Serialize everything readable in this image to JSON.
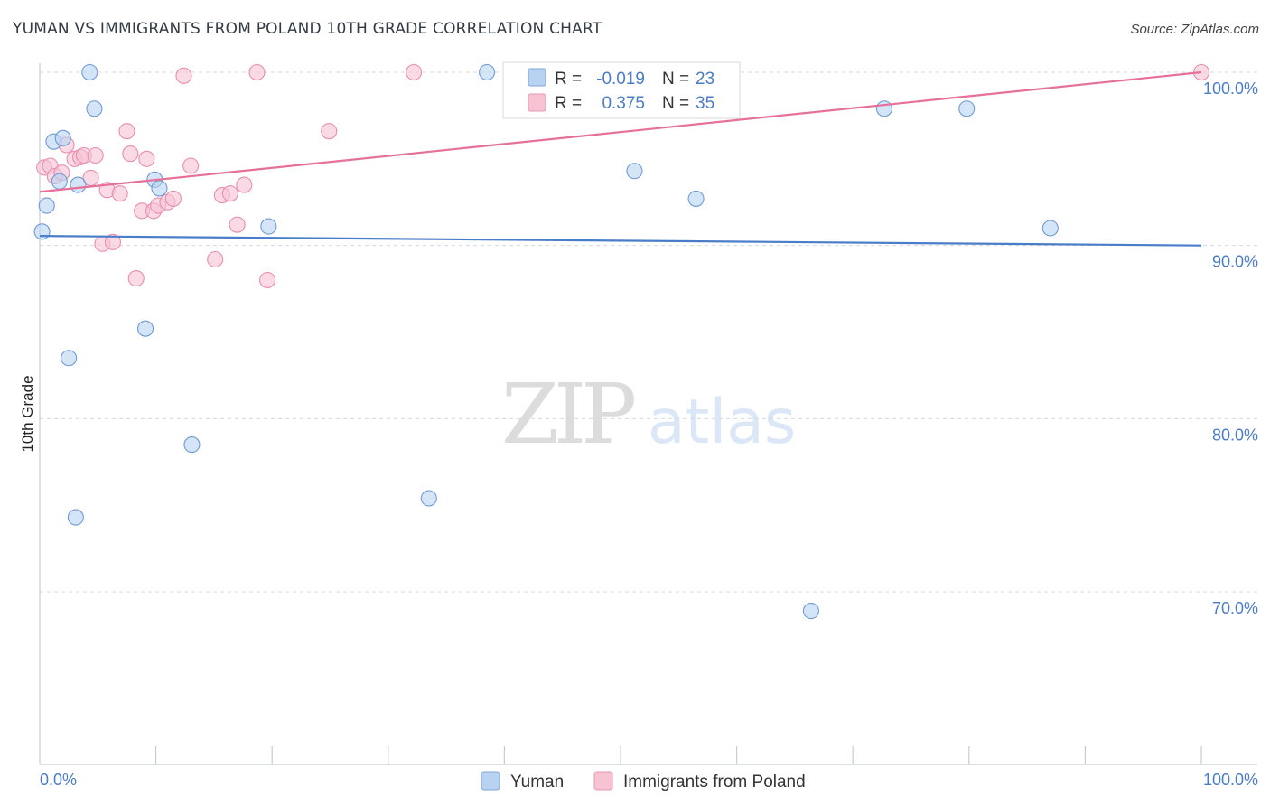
{
  "title": "YUMAN VS IMMIGRANTS FROM POLAND 10TH GRADE CORRELATION CHART",
  "source": "Source: ZipAtlas.com",
  "watermark": {
    "zip": "ZIP",
    "atlas": "atlas"
  },
  "colors": {
    "blue": "#4a7dc9",
    "blue_fill": "#b8d3f2",
    "pink": "#e6709a",
    "pink_fill": "#f7c3d3",
    "grid": "#d5d9df"
  },
  "legend": {
    "rows": [
      {
        "r_label": "R =",
        "r_value": "-0.019",
        "n_label": "N =",
        "n_value": "23"
      },
      {
        "r_label": "R =",
        "r_value": "0.375",
        "n_label": "N =",
        "n_value": "35"
      }
    ]
  },
  "chart_data": {
    "type": "scatter",
    "title": "YUMAN VS IMMIGRANTS FROM POLAND 10TH GRADE CORRELATION CHART",
    "xlabel": "",
    "ylabel": "10th Grade",
    "xlim": [
      0,
      100
    ],
    "ylim": [
      60.5,
      102
    ],
    "x_tick_labels": [
      "0.0%",
      "100.0%"
    ],
    "y_ticks": [
      70,
      80,
      90,
      100
    ],
    "y_tick_labels": [
      "70.0%",
      "80.0%",
      "90.0%",
      "100.0%"
    ],
    "grid": true,
    "series": [
      {
        "name": "Yuman",
        "color": "#4a7dc9",
        "trend": {
          "x": [
            0,
            100
          ],
          "y": [
            90.55,
            90.0
          ]
        },
        "points": [
          {
            "x": 0.2,
            "y": 90.8
          },
          {
            "x": 0.6,
            "y": 92.3
          },
          {
            "x": 1.2,
            "y": 96.0
          },
          {
            "x": 1.7,
            "y": 93.7
          },
          {
            "x": 2.0,
            "y": 96.2
          },
          {
            "x": 2.5,
            "y": 83.5
          },
          {
            "x": 3.1,
            "y": 74.3
          },
          {
            "x": 3.3,
            "y": 93.5
          },
          {
            "x": 4.3,
            "y": 100.0
          },
          {
            "x": 4.7,
            "y": 97.9
          },
          {
            "x": 9.1,
            "y": 85.2
          },
          {
            "x": 9.9,
            "y": 93.8
          },
          {
            "x": 10.3,
            "y": 93.3
          },
          {
            "x": 13.1,
            "y": 78.5
          },
          {
            "x": 19.7,
            "y": 91.1
          },
          {
            "x": 33.5,
            "y": 75.4
          },
          {
            "x": 38.5,
            "y": 100.0
          },
          {
            "x": 51.2,
            "y": 94.3
          },
          {
            "x": 56.5,
            "y": 92.7
          },
          {
            "x": 66.4,
            "y": 68.9
          },
          {
            "x": 72.7,
            "y": 97.9
          },
          {
            "x": 79.8,
            "y": 97.9
          },
          {
            "x": 87.0,
            "y": 91.0
          }
        ]
      },
      {
        "name": "Immigrants from Poland",
        "color": "#e6709a",
        "trend": {
          "x": [
            0,
            100
          ],
          "y": [
            93.1,
            100.0
          ]
        },
        "points": [
          {
            "x": 0.4,
            "y": 94.5
          },
          {
            "x": 0.9,
            "y": 94.6
          },
          {
            "x": 1.3,
            "y": 94.0
          },
          {
            "x": 1.9,
            "y": 94.2
          },
          {
            "x": 2.3,
            "y": 95.8
          },
          {
            "x": 3.0,
            "y": 95.0
          },
          {
            "x": 3.5,
            "y": 95.1
          },
          {
            "x": 3.8,
            "y": 95.2
          },
          {
            "x": 4.4,
            "y": 93.9
          },
          {
            "x": 4.8,
            "y": 95.2
          },
          {
            "x": 5.4,
            "y": 90.1
          },
          {
            "x": 5.8,
            "y": 93.2
          },
          {
            "x": 6.3,
            "y": 90.2
          },
          {
            "x": 6.9,
            "y": 93.0
          },
          {
            "x": 7.5,
            "y": 96.6
          },
          {
            "x": 7.8,
            "y": 95.3
          },
          {
            "x": 8.3,
            "y": 88.1
          },
          {
            "x": 8.8,
            "y": 92.0
          },
          {
            "x": 9.2,
            "y": 95.0
          },
          {
            "x": 9.8,
            "y": 92.0
          },
          {
            "x": 10.2,
            "y": 92.3
          },
          {
            "x": 11.0,
            "y": 92.5
          },
          {
            "x": 11.5,
            "y": 92.7
          },
          {
            "x": 12.4,
            "y": 99.8
          },
          {
            "x": 13.0,
            "y": 94.6
          },
          {
            "x": 15.1,
            "y": 89.2
          },
          {
            "x": 15.7,
            "y": 92.9
          },
          {
            "x": 16.4,
            "y": 93.0
          },
          {
            "x": 17.0,
            "y": 91.2
          },
          {
            "x": 17.6,
            "y": 93.5
          },
          {
            "x": 18.7,
            "y": 100.0
          },
          {
            "x": 19.6,
            "y": 88.0
          },
          {
            "x": 24.9,
            "y": 96.6
          },
          {
            "x": 32.2,
            "y": 100.0
          },
          {
            "x": 100.0,
            "y": 100.0
          }
        ]
      }
    ]
  }
}
